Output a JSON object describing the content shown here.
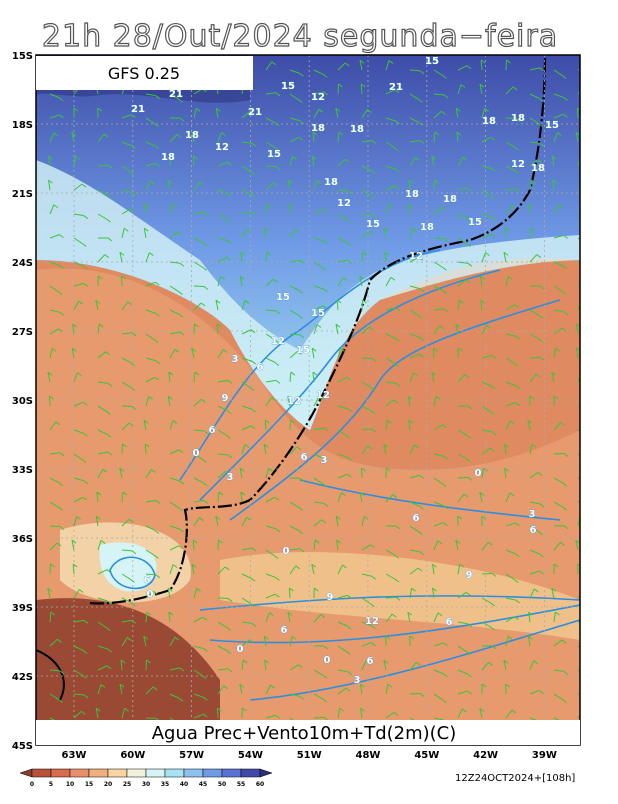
{
  "header": {
    "title": "21h 28/Out/2024 segunda−feira",
    "model": "GFS 0.25"
  },
  "map": {
    "lat_labels": [
      "15S",
      "18S",
      "21S",
      "24S",
      "27S",
      "30S",
      "33S",
      "36S",
      "39S",
      "42S",
      "45S"
    ],
    "lon_labels": [
      "63W",
      "60W",
      "57W",
      "54W",
      "51W",
      "48W",
      "45W",
      "42W",
      "39W"
    ],
    "caption": "Agua Prec+Vento10m+Td(2m)(C)",
    "contour_labels": [
      "15",
      "21",
      "15",
      "12",
      "21",
      "21",
      "21",
      "18",
      "12",
      "18",
      "18",
      "18",
      "18",
      "15",
      "18",
      "15",
      "18",
      "18",
      "18",
      "12",
      "18",
      "15",
      "18",
      "15",
      "12",
      "12",
      "15",
      "15",
      "12",
      "15",
      "12",
      "12",
      "6",
      "3",
      "0",
      "6",
      "3",
      "6",
      "9",
      "12",
      "6",
      "9",
      "6",
      "0",
      "0",
      "6",
      "3",
      "0",
      "6",
      "0",
      "3",
      "6",
      "0",
      "9",
      "3",
      "6"
    ]
  },
  "colorbar": {
    "labels": [
      "0",
      "5",
      "10",
      "15",
      "20",
      "25",
      "30",
      "35",
      "40",
      "45",
      "50",
      "55",
      "60"
    ],
    "colors": [
      "#8a3f2c",
      "#b5533a",
      "#d96b4e",
      "#e8906a",
      "#f0b07e",
      "#f7d4a0",
      "#f2f0dc",
      "#d6f4f6",
      "#a6e2f2",
      "#8ec0ee",
      "#6f9ae6",
      "#5a72d4",
      "#3e4ca8",
      "#2a2f7c"
    ]
  },
  "footer": {
    "run": "12Z24OCT2024+[108h]"
  }
}
